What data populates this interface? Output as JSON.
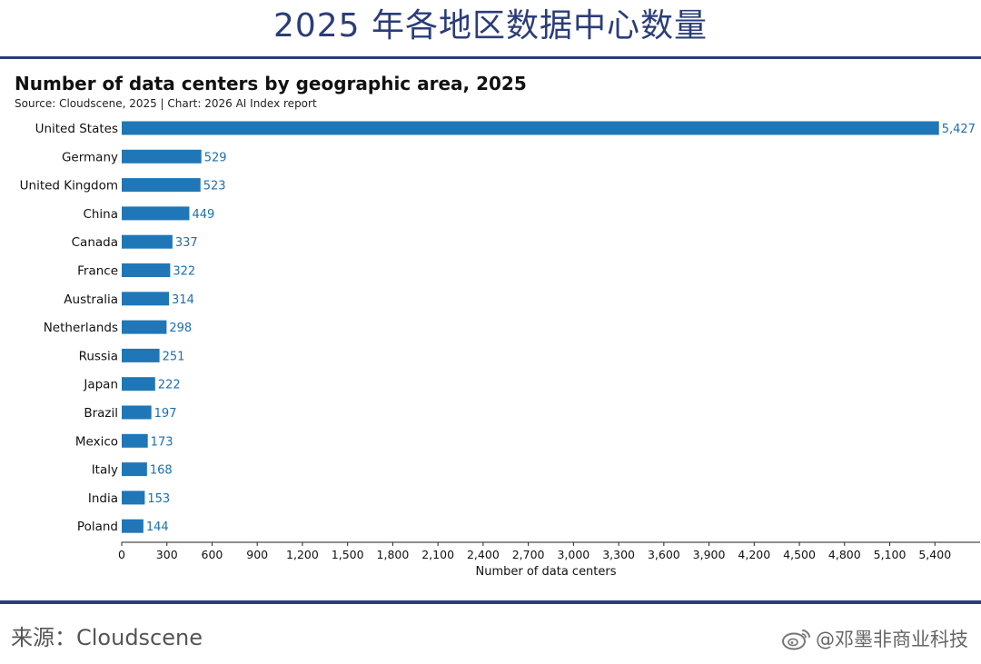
{
  "header": {
    "heading": "2025 年各地区数据中心数量"
  },
  "chart_title": "Number of data centers by geographic area, 2025",
  "chart_source": "Source: Cloudscene, 2025 | Chart: 2026 AI Index report",
  "footer": {
    "source": "来源：Cloudscene",
    "watermark": "@邓墨非商业科技",
    "watermark_icon": "weibo-icon"
  },
  "colors": {
    "bar": "#1f77b8",
    "value_label": "#1c6fb3",
    "heading": "#2b3d78"
  },
  "chart_data": {
    "type": "bar",
    "orientation": "horizontal",
    "title": "Number of data centers by geographic area, 2025",
    "subtitle": "Source: Cloudscene, 2025 | Chart: 2026 AI Index report",
    "xlabel": "Number of data centers",
    "ylabel": "",
    "categories": [
      "United States",
      "Germany",
      "United Kingdom",
      "China",
      "Canada",
      "France",
      "Australia",
      "Netherlands",
      "Russia",
      "Japan",
      "Brazil",
      "Mexico",
      "Italy",
      "India",
      "Poland"
    ],
    "values": [
      5427,
      529,
      523,
      449,
      337,
      322,
      314,
      298,
      251,
      222,
      197,
      173,
      168,
      153,
      144
    ],
    "value_labels": [
      "5,427",
      "529",
      "523",
      "449",
      "337",
      "322",
      "314",
      "298",
      "251",
      "222",
      "197",
      "173",
      "168",
      "153",
      "144"
    ],
    "xlim": [
      0,
      5700
    ],
    "xticks": [
      0,
      300,
      600,
      900,
      1200,
      1500,
      1800,
      2100,
      2400,
      2700,
      3000,
      3300,
      3600,
      3900,
      4200,
      4500,
      4800,
      5100,
      5400
    ],
    "xtick_labels": [
      "0",
      "300",
      "600",
      "900",
      "1,200",
      "1,500",
      "1,800",
      "2,100",
      "2,400",
      "2,700",
      "3,000",
      "3,300",
      "3,600",
      "3,900",
      "4,200",
      "4,500",
      "4,800",
      "5,100",
      "5,400"
    ],
    "grid": false,
    "legend": "none"
  }
}
